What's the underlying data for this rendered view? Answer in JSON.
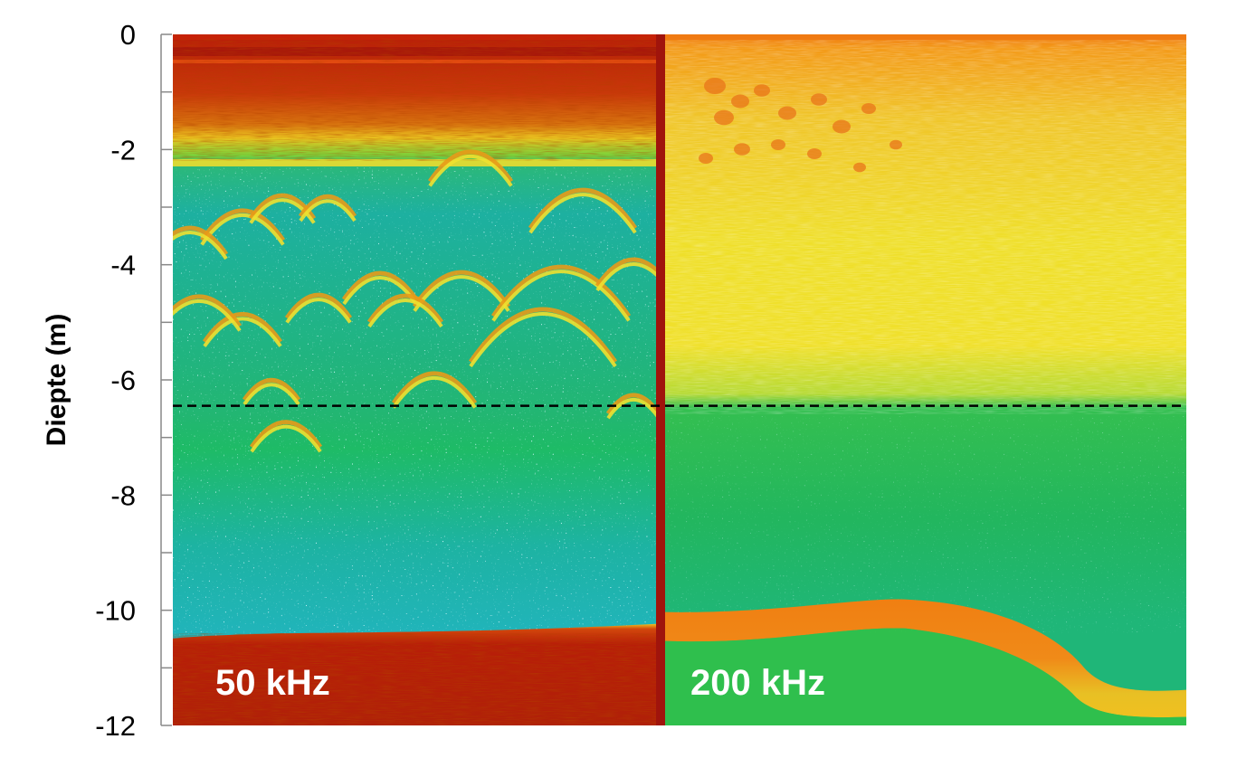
{
  "chart_data": {
    "type": "heatmap",
    "title": "",
    "xlabel": "",
    "ylabel": "Diepte (m)",
    "ylim": [
      -12,
      0
    ],
    "y_ticks": [
      "0",
      "-2",
      "-4",
      "-6",
      "-8",
      "-10",
      "-12"
    ],
    "y_tick_values": [
      0,
      -2,
      -4,
      -6,
      -8,
      -10,
      -12
    ],
    "grid": false,
    "panels": [
      {
        "name": "50 kHz",
        "label": "50 kHz",
        "bottom_depth": -10.3,
        "surface_band_depth": -2.2
      },
      {
        "name": "200 kHz",
        "label": "200 kHz",
        "bottom_depth": -10.0,
        "surface_band_depth": -6.3
      }
    ],
    "reference_line": {
      "y": -6.45,
      "style": "dashed",
      "color": "#000000"
    },
    "colors": {
      "strong": "#b81e08",
      "high": "#f07a12",
      "mid": "#f2ea22",
      "low": "#22c050",
      "weak": "#1fb0a8",
      "noise": "#9fe8ff"
    }
  }
}
